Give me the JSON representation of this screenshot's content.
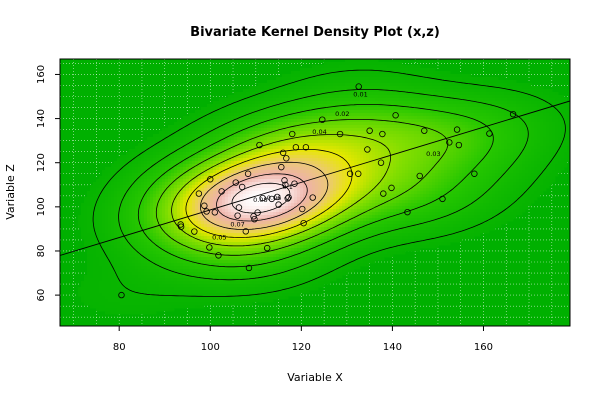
{
  "chart_data": {
    "type": "contour",
    "title": "Bivariate Kernel Density Plot (x,z)",
    "xlabel": "Variable X",
    "ylabel": "Variable Z",
    "xlim": [
      67,
      179
    ],
    "ylim": [
      46,
      167
    ],
    "xticks": [
      80,
      100,
      120,
      140,
      160
    ],
    "yticks": [
      60,
      80,
      100,
      120,
      140,
      160
    ],
    "grid": true,
    "colors": {
      "low_density": "#00b000",
      "mid_density": "#e8e800",
      "high_density": "#ffffff",
      "grid": "#ffffff",
      "contour_line": "#000000",
      "plot_border": "#000000"
    },
    "contour_labels": [
      {
        "text": "0.01",
        "x": 133,
        "y": 151
      },
      {
        "text": "0.02",
        "x": 129,
        "y": 142
      },
      {
        "text": "0.03",
        "x": 149,
        "y": 124
      },
      {
        "text": "0.04",
        "x": 124,
        "y": 134
      },
      {
        "text": "0.05",
        "x": 102,
        "y": 86
      },
      {
        "text": "0.06",
        "x": 114,
        "y": 104
      },
      {
        "text": "0.07",
        "x": 106,
        "y": 92
      },
      {
        "text": "0.08",
        "x": 111,
        "y": 103
      },
      {
        "text": "0.1",
        "x": 117,
        "y": 109
      }
    ],
    "regression_line": {
      "intercept": 36.1,
      "slope": 0.625
    },
    "points": [
      [
        80.5,
        60
      ],
      [
        93.5,
        92
      ],
      [
        93.6,
        91
      ],
      [
        96.5,
        88.8
      ],
      [
        97.5,
        106
      ],
      [
        98.7,
        100.5
      ],
      [
        99.2,
        97.9
      ],
      [
        100,
        112.5
      ],
      [
        99.8,
        81.6
      ],
      [
        101,
        97.5
      ],
      [
        101.8,
        78
      ],
      [
        102.5,
        107
      ],
      [
        105.6,
        111
      ],
      [
        106,
        96
      ],
      [
        106.3,
        99.7
      ],
      [
        107,
        109
      ],
      [
        107.8,
        88.9
      ],
      [
        108.3,
        115
      ],
      [
        108.5,
        72.3
      ],
      [
        109.5,
        95.7
      ],
      [
        109.7,
        94.4
      ],
      [
        110.4,
        97.4
      ],
      [
        110.8,
        128
      ],
      [
        111.5,
        104
      ],
      [
        112.5,
        81.3
      ],
      [
        113.5,
        103.6
      ],
      [
        114.7,
        104.5
      ],
      [
        115,
        101
      ],
      [
        115.6,
        118
      ],
      [
        116,
        124.5
      ],
      [
        116.3,
        112
      ],
      [
        116.5,
        110
      ],
      [
        116.7,
        122
      ],
      [
        117,
        103.8
      ],
      [
        117.2,
        104.3
      ],
      [
        118,
        133
      ],
      [
        118.5,
        110.5
      ],
      [
        118.8,
        127
      ],
      [
        120.2,
        99
      ],
      [
        120.5,
        92.6
      ],
      [
        121,
        127
      ],
      [
        122.5,
        104.2
      ],
      [
        124.6,
        139.5
      ],
      [
        128.5,
        133
      ],
      [
        130.7,
        115
      ],
      [
        132.5,
        115
      ],
      [
        132.6,
        154.5
      ],
      [
        134.5,
        126
      ],
      [
        135,
        134.5
      ],
      [
        137.5,
        120
      ],
      [
        137.8,
        133
      ],
      [
        138,
        106
      ],
      [
        139.8,
        108.6
      ],
      [
        140.7,
        141.5
      ],
      [
        143.3,
        97.6
      ],
      [
        146,
        114
      ],
      [
        147,
        134.5
      ],
      [
        151,
        103.6
      ],
      [
        152.5,
        129.2
      ],
      [
        154.2,
        135
      ],
      [
        154.6,
        128
      ],
      [
        158,
        115
      ],
      [
        161.3,
        133.2
      ],
      [
        166.5,
        142
      ]
    ]
  }
}
